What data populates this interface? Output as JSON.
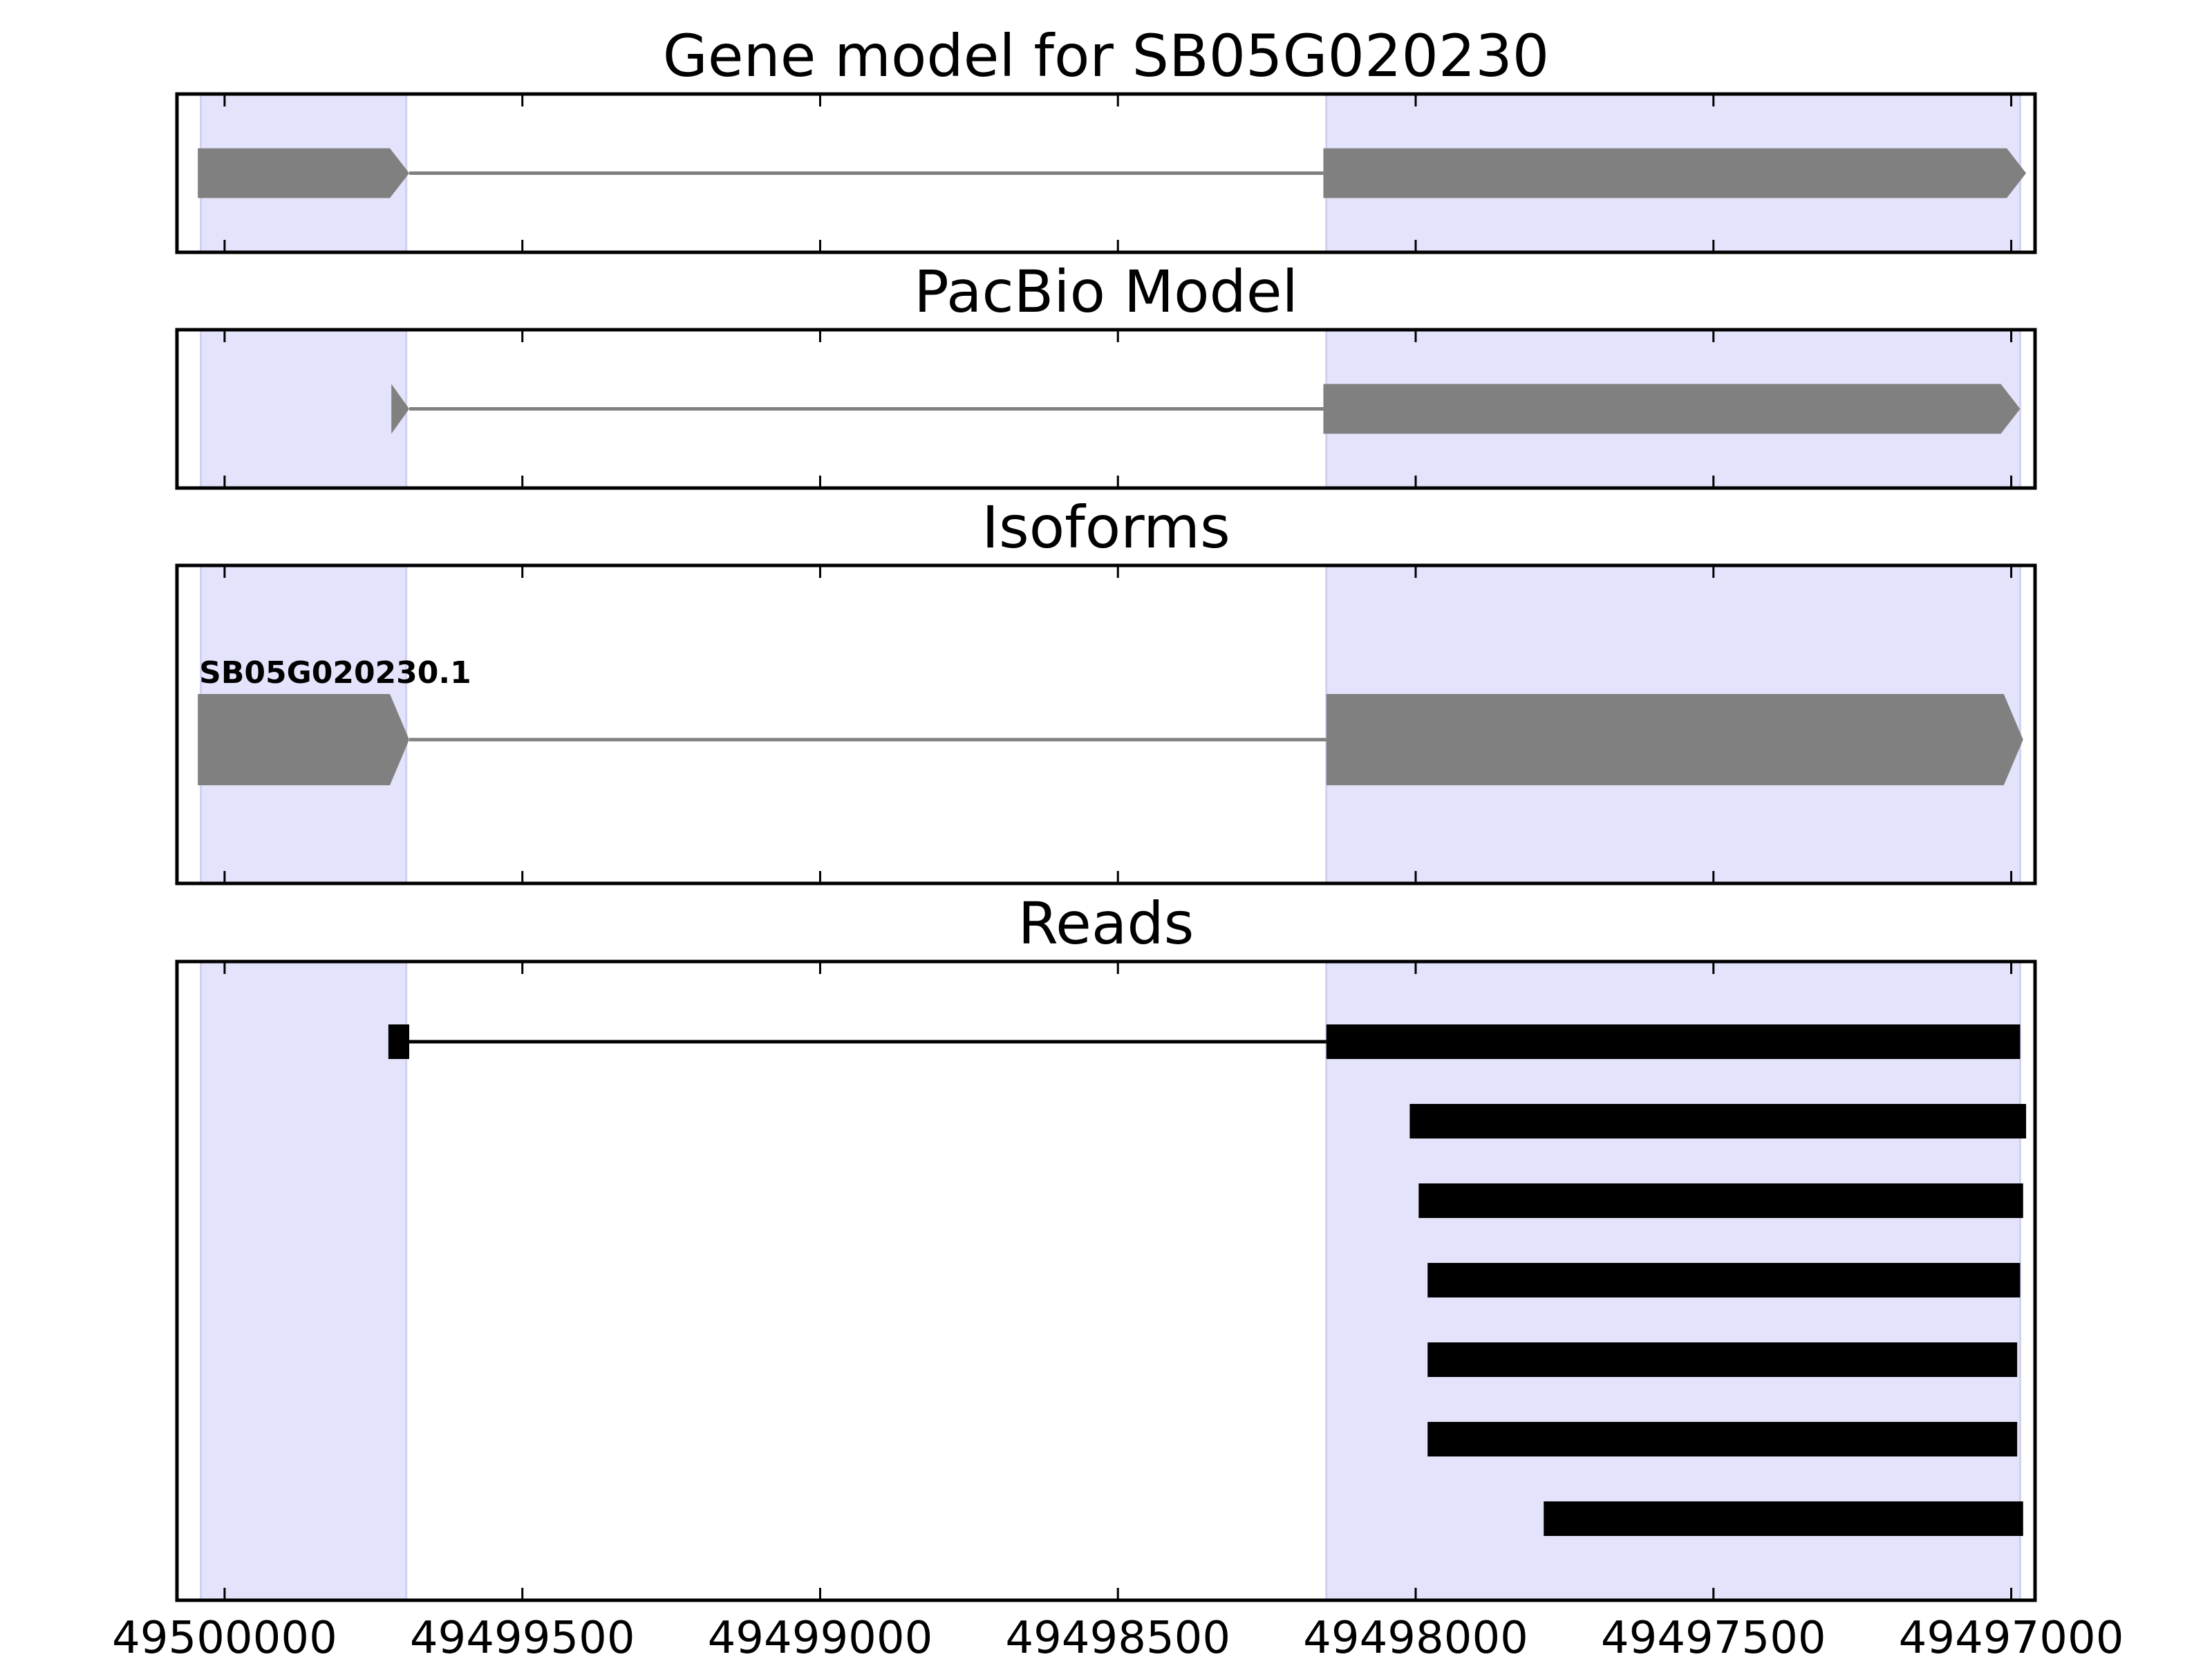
{
  "chart_data": {
    "type": "gene-track",
    "x_range": [
      49500080,
      49496960
    ],
    "x_ticks": [
      49500000,
      49499500,
      49499000,
      49498500,
      49498000,
      49497500,
      49497000
    ],
    "x_tick_labels": [
      "49500000",
      "49499500",
      "49499000",
      "49498500",
      "49498000",
      "49497500",
      "49497000"
    ],
    "highlight_regions": [
      {
        "start": 49500040,
        "end": 49499695
      },
      {
        "start": 49498150,
        "end": 49496985
      }
    ],
    "colors": {
      "highlight": "#e3e3fb",
      "highlight_edge": "#d0d0f0",
      "model": "#808080",
      "read": "#000000",
      "axis": "#000000"
    },
    "panels": [
      {
        "key": "gene_model",
        "title": "Gene model for SB05G020230",
        "strand": "-",
        "exons": [
          {
            "start": 49500045,
            "end": 49499690
          },
          {
            "start": 49498155,
            "end": 49496975
          }
        ],
        "introns": [
          {
            "start": 49499690,
            "end": 49498155
          }
        ]
      },
      {
        "key": "pacbio_model",
        "title": "PacBio Model",
        "strand": "-",
        "exons": [
          {
            "start": 49499720,
            "end": 49499690
          },
          {
            "start": 49498155,
            "end": 49496985
          }
        ],
        "introns": [
          {
            "start": 49499690,
            "end": 49498155
          }
        ]
      },
      {
        "key": "isoforms",
        "title": "Isoforms",
        "strand": "-",
        "label": "SB05G020230.1",
        "exons": [
          {
            "start": 49500045,
            "end": 49499690
          },
          {
            "start": 49498150,
            "end": 49496980
          }
        ],
        "introns": [
          {
            "start": 49499690,
            "end": 49498150
          }
        ]
      },
      {
        "key": "reads",
        "title": "Reads",
        "reads": [
          {
            "blocks": [
              {
                "start": 49499725,
                "end": 49499690
              },
              {
                "start": 49498150,
                "end": 49496985
              }
            ],
            "gaps": [
              {
                "start": 49499690,
                "end": 49498150
              }
            ]
          },
          {
            "blocks": [
              {
                "start": 49498010,
                "end": 49496975
              }
            ],
            "gaps": []
          },
          {
            "blocks": [
              {
                "start": 49497995,
                "end": 49496980
              }
            ],
            "gaps": []
          },
          {
            "blocks": [
              {
                "start": 49497980,
                "end": 49496985
              }
            ],
            "gaps": []
          },
          {
            "blocks": [
              {
                "start": 49497980,
                "end": 49496990
              }
            ],
            "gaps": []
          },
          {
            "blocks": [
              {
                "start": 49497980,
                "end": 49496990
              }
            ],
            "gaps": []
          },
          {
            "blocks": [
              {
                "start": 49497785,
                "end": 49496980
              }
            ],
            "gaps": []
          }
        ]
      }
    ]
  }
}
